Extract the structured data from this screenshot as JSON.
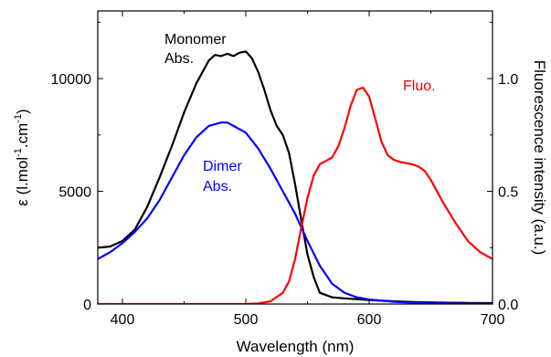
{
  "chart_data": {
    "type": "line",
    "xlabel": "Wavelength (nm)",
    "ylabel_left": {
      "prefix": "ε (l.mol",
      "sup1": "-1",
      "mid": ".cm",
      "sup2": "-1",
      "suffix": ")"
    },
    "ylabel_right": "Fluorescence intensity (a.u.)",
    "xlim": [
      380,
      700
    ],
    "ylim_left": [
      0,
      13000
    ],
    "ylim_right": [
      0,
      1.3
    ],
    "x_ticks": [
      400,
      500,
      600,
      700
    ],
    "x_tick_labels": [
      "400",
      "500",
      "600",
      "700"
    ],
    "y_left_ticks": [
      0,
      5000,
      10000
    ],
    "y_left_tick_labels": [
      "0",
      "5000",
      "10000"
    ],
    "y_right_ticks": [
      0.0,
      0.5,
      1.0
    ],
    "y_right_tick_labels": [
      "0.0",
      "0.5",
      "1.0"
    ],
    "grid": false,
    "series": [
      {
        "name": "Monomer Abs.",
        "label_lines": [
          "Monomer",
          "Abs."
        ],
        "color": "#000000",
        "axis": "left",
        "x": [
          380,
          390,
          400,
          410,
          420,
          430,
          440,
          450,
          460,
          470,
          475,
          480,
          485,
          490,
          495,
          500,
          505,
          510,
          515,
          520,
          525,
          530,
          535,
          540,
          545,
          550,
          555,
          560,
          570,
          580,
          600,
          620,
          640,
          660,
          680,
          700
        ],
        "y": [
          2500,
          2550,
          2800,
          3300,
          4300,
          5600,
          7000,
          8500,
          9800,
          10800,
          11050,
          11000,
          11100,
          11000,
          11150,
          11200,
          10900,
          10300,
          9500,
          8600,
          7900,
          7500,
          6700,
          5300,
          3700,
          2200,
          1200,
          500,
          300,
          250,
          180,
          120,
          80,
          60,
          50,
          40
        ]
      },
      {
        "name": "Dimer Abs.",
        "label_lines": [
          "Dimer",
          "Abs."
        ],
        "color": "#0000ff",
        "axis": "left",
        "x": [
          380,
          390,
          400,
          410,
          420,
          430,
          440,
          450,
          460,
          470,
          480,
          485,
          490,
          500,
          510,
          520,
          530,
          540,
          550,
          560,
          570,
          580,
          590,
          600,
          620,
          640,
          660,
          680,
          700
        ],
        "y": [
          2000,
          2300,
          2700,
          3200,
          3800,
          4600,
          5600,
          6600,
          7400,
          7900,
          8050,
          8050,
          7900,
          7600,
          6900,
          6000,
          5000,
          4000,
          2800,
          1700,
          900,
          500,
          300,
          200,
          100,
          50,
          30,
          10,
          0
        ]
      },
      {
        "name": "Fluo.",
        "label_lines": [
          "Fluo."
        ],
        "color": "#ff0000",
        "axis": "right",
        "x": [
          380,
          500,
          510,
          520,
          530,
          535,
          540,
          545,
          550,
          555,
          560,
          565,
          570,
          575,
          580,
          585,
          590,
          595,
          600,
          605,
          610,
          615,
          620,
          625,
          630,
          635,
          640,
          645,
          650,
          660,
          670,
          680,
          690,
          700
        ],
        "y": [
          0,
          0,
          0.003,
          0.012,
          0.05,
          0.1,
          0.2,
          0.34,
          0.47,
          0.57,
          0.62,
          0.635,
          0.65,
          0.7,
          0.78,
          0.88,
          0.95,
          0.96,
          0.92,
          0.82,
          0.72,
          0.66,
          0.64,
          0.63,
          0.625,
          0.62,
          0.61,
          0.59,
          0.55,
          0.45,
          0.36,
          0.28,
          0.23,
          0.2
        ]
      }
    ]
  }
}
